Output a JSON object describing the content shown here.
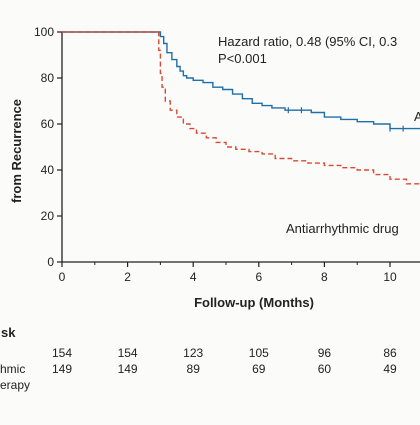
{
  "chart_data": {
    "type": "line",
    "subtype": "kaplan-meier step curve",
    "title": "",
    "xlabel": "Follow-up (Months)",
    "ylabel_visible_fragment": "from Recurrence",
    "xlim": [
      0,
      11
    ],
    "ylim": [
      0,
      100
    ],
    "x_ticks": [
      0,
      2,
      4,
      6,
      8,
      10
    ],
    "y_ticks": [
      0,
      20,
      40,
      60,
      80,
      100
    ],
    "grid": false,
    "annotations": {
      "hazard_line1": "Hazard ratio, 0.48 (95% CI, 0.3",
      "hazard_line2": "P<0.001"
    },
    "series": [
      {
        "name": "A",
        "color": "#1f6fa8",
        "style": "solid",
        "points": [
          [
            0,
            100
          ],
          [
            2.9,
            100
          ],
          [
            3.0,
            98
          ],
          [
            3.1,
            95
          ],
          [
            3.2,
            91
          ],
          [
            3.35,
            88
          ],
          [
            3.5,
            85
          ],
          [
            3.6,
            83
          ],
          [
            3.7,
            81
          ],
          [
            3.8,
            80
          ],
          [
            4.0,
            79
          ],
          [
            4.3,
            78
          ],
          [
            4.6,
            76
          ],
          [
            4.9,
            75
          ],
          [
            5.2,
            73
          ],
          [
            5.5,
            71
          ],
          [
            5.8,
            69
          ],
          [
            6.1,
            68
          ],
          [
            6.4,
            67
          ],
          [
            6.8,
            66
          ],
          [
            7.2,
            66
          ],
          [
            7.6,
            65
          ],
          [
            8.0,
            63
          ],
          [
            8.5,
            62
          ],
          [
            9.0,
            61
          ],
          [
            9.5,
            60
          ],
          [
            10.0,
            58
          ],
          [
            10.5,
            58
          ],
          [
            11.0,
            58
          ]
        ],
        "censor_marks": [
          6.9,
          7.3,
          10.0,
          10.4
        ]
      },
      {
        "name": "Antiarrhythmic drug",
        "color": "#d94a35",
        "style": "dashed",
        "points": [
          [
            0,
            100
          ],
          [
            2.9,
            100
          ],
          [
            2.95,
            92
          ],
          [
            3.0,
            82
          ],
          [
            3.05,
            76
          ],
          [
            3.15,
            70
          ],
          [
            3.3,
            66
          ],
          [
            3.5,
            63
          ],
          [
            3.7,
            60
          ],
          [
            3.9,
            58
          ],
          [
            4.1,
            56
          ],
          [
            4.4,
            54
          ],
          [
            4.7,
            52
          ],
          [
            5.0,
            50
          ],
          [
            5.3,
            49
          ],
          [
            5.7,
            48
          ],
          [
            6.1,
            47
          ],
          [
            6.5,
            45
          ],
          [
            7.0,
            44
          ],
          [
            7.5,
            43
          ],
          [
            8.0,
            42
          ],
          [
            8.5,
            41
          ],
          [
            9.0,
            40
          ],
          [
            9.5,
            38
          ],
          [
            10.0,
            36
          ],
          [
            10.5,
            34
          ],
          [
            11.0,
            33
          ]
        ]
      }
    ]
  },
  "risk_table": {
    "header_fragment": "sk",
    "rows": [
      {
        "label_line1": "",
        "label_line2": "",
        "values": [
          "154",
          "154",
          "123",
          "105",
          "96",
          "86"
        ]
      },
      {
        "label_line1": "hmic",
        "label_line2": "erapy",
        "values": [
          "149",
          "149",
          "89",
          "69",
          "60",
          "49"
        ]
      }
    ]
  },
  "x_tick_labels": [
    "0",
    "2",
    "4",
    "6",
    "8",
    "10"
  ],
  "y_tick_labels": [
    "0",
    "20",
    "40",
    "60",
    "80",
    "100"
  ]
}
